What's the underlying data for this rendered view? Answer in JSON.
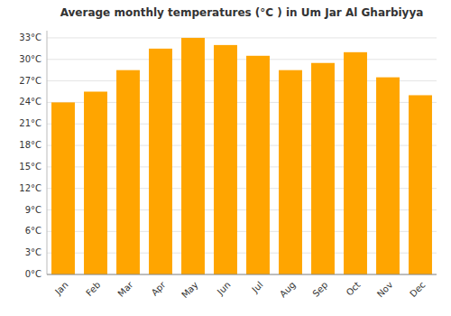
{
  "chart_data": {
    "type": "bar",
    "title": "Average monthly temperatures (°C ) in Um Jar Al Gharbiyya",
    "categories": [
      "Jan",
      "Feb",
      "Mar",
      "Apr",
      "May",
      "Jun",
      "Jul",
      "Aug",
      "Sep",
      "Oct",
      "Nov",
      "Dec"
    ],
    "values": [
      24.0,
      25.5,
      28.5,
      31.5,
      33.0,
      32.0,
      30.5,
      28.5,
      29.5,
      31.0,
      27.5,
      25.0
    ],
    "color": "#FFA500",
    "ylim": [
      0,
      34
    ],
    "yticks": [
      {
        "value": 0,
        "label": "0°C"
      },
      {
        "value": 3,
        "label": "3°C"
      },
      {
        "value": 6,
        "label": "6°C"
      },
      {
        "value": 9,
        "label": "9°C"
      },
      {
        "value": 12,
        "label": "12°C"
      },
      {
        "value": 15,
        "label": "15°C"
      },
      {
        "value": 18,
        "label": "18°C"
      },
      {
        "value": 21,
        "label": "21°C"
      },
      {
        "value": 24,
        "label": "24°C"
      },
      {
        "value": 27,
        "label": "27°C"
      },
      {
        "value": 30,
        "label": "30°C"
      },
      {
        "value": 33,
        "label": "33°C"
      }
    ],
    "grid": true
  }
}
